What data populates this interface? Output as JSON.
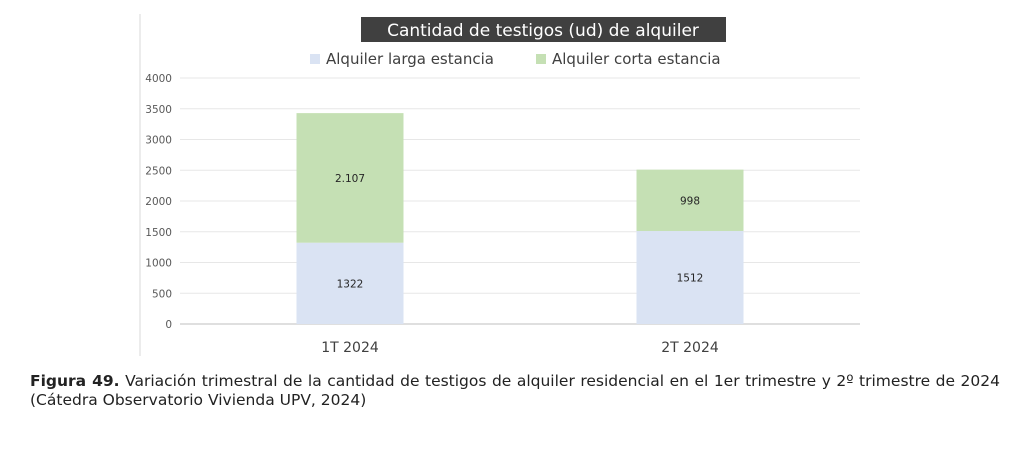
{
  "chart_data": {
    "type": "bar",
    "stacked": true,
    "title": "Cantidad de testigos (ud) de alquiler",
    "categories": [
      "1T 2024",
      "2T 2024"
    ],
    "series": [
      {
        "name": "Alquiler larga estancia",
        "values": [
          1322,
          1512
        ],
        "labels": [
          "1322",
          "1512"
        ],
        "color": "#dae3f3"
      },
      {
        "name": "Alquiler corta estancia",
        "values": [
          2107,
          998
        ],
        "labels": [
          "2.107",
          "998"
        ],
        "color": "#c5e0b4"
      }
    ],
    "ylim": [
      0,
      4000
    ],
    "yticks": [
      "0",
      "500",
      "1000",
      "1500",
      "2000",
      "2500",
      "3000",
      "3500",
      "4000"
    ],
    "grid": true,
    "legend": "top",
    "title_background": "#404040",
    "title_color": "#ffffff"
  },
  "caption": {
    "label": "Figura 49.",
    "text": " Variación trimestral de la cantidad de testigos de alquiler residencial en el 1er trimestre y 2º trimestre de 2024 (Cátedra Observatorio Vivienda UPV, 2024)"
  }
}
